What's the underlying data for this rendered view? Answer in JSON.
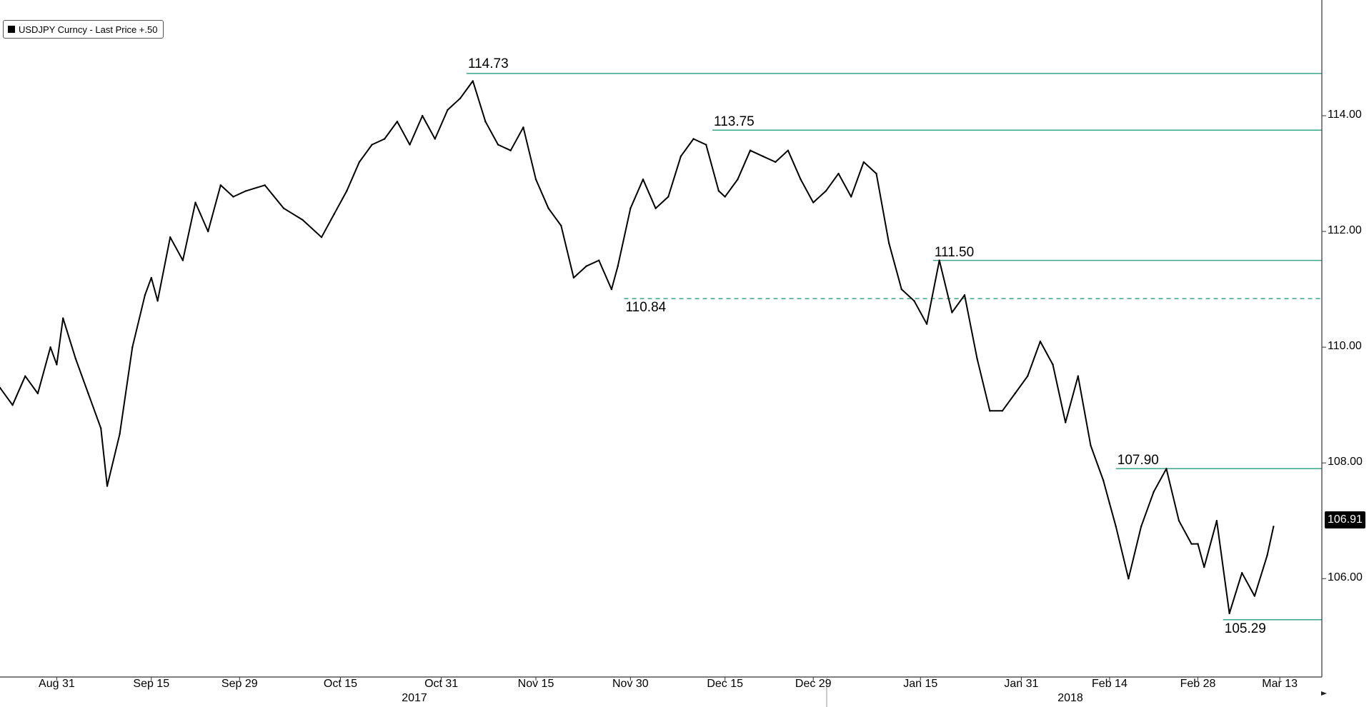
{
  "legend": {
    "label": "USDJPY Curncy - Last Price +.50"
  },
  "last_price_label": "106.91",
  "colors": {
    "series": "#000000",
    "level_line": "#3aa58a",
    "axis": "#333333"
  },
  "chart_data": {
    "type": "line",
    "title": "",
    "xlabel": "",
    "ylabel": "",
    "ylim": [
      104.3,
      116.0
    ],
    "legend_position": "top-left",
    "grid": false,
    "y_ticks": [
      "106.00",
      "108.00",
      "110.00",
      "112.00",
      "114.00"
    ],
    "x_ticks": [
      "Aug 31",
      "Sep 15",
      "Sep 29",
      "Oct 15",
      "Oct 31",
      "Nov 15",
      "Nov 30",
      "Dec 15",
      "Dec 29",
      "Jan 15",
      "Jan 31",
      "Feb 14",
      "Feb 28",
      "Mar 13"
    ],
    "years": [
      "2017",
      "2018"
    ],
    "series": [
      {
        "name": "USDJPY Curncy - Last Price",
        "x": [
          "2017-08-22",
          "2017-08-24",
          "2017-08-26",
          "2017-08-28",
          "2017-08-30",
          "2017-08-31",
          "2017-09-01",
          "2017-09-03",
          "2017-09-05",
          "2017-09-07",
          "2017-09-08",
          "2017-09-10",
          "2017-09-12",
          "2017-09-14",
          "2017-09-15",
          "2017-09-16",
          "2017-09-18",
          "2017-09-20",
          "2017-09-22",
          "2017-09-24",
          "2017-09-26",
          "2017-09-28",
          "2017-09-30",
          "2017-10-03",
          "2017-10-06",
          "2017-10-09",
          "2017-10-12",
          "2017-10-14",
          "2017-10-16",
          "2017-10-18",
          "2017-10-20",
          "2017-10-22",
          "2017-10-24",
          "2017-10-26",
          "2017-10-28",
          "2017-10-30",
          "2017-11-01",
          "2017-11-03",
          "2017-11-05",
          "2017-11-07",
          "2017-11-09",
          "2017-11-11",
          "2017-11-13",
          "2017-11-15",
          "2017-11-17",
          "2017-11-19",
          "2017-11-21",
          "2017-11-23",
          "2017-11-25",
          "2017-11-27",
          "2017-11-28",
          "2017-11-30",
          "2017-12-02",
          "2017-12-04",
          "2017-12-06",
          "2017-12-08",
          "2017-12-10",
          "2017-12-12",
          "2017-12-14",
          "2017-12-15",
          "2017-12-17",
          "2017-12-19",
          "2017-12-21",
          "2017-12-23",
          "2017-12-25",
          "2017-12-27",
          "2017-12-29",
          "2017-12-31",
          "2018-01-02",
          "2018-01-04",
          "2018-01-06",
          "2018-01-08",
          "2018-01-10",
          "2018-01-12",
          "2018-01-14",
          "2018-01-16",
          "2018-01-18",
          "2018-01-20",
          "2018-01-22",
          "2018-01-24",
          "2018-01-26",
          "2018-01-28",
          "2018-01-30",
          "2018-02-01",
          "2018-02-03",
          "2018-02-05",
          "2018-02-07",
          "2018-02-09",
          "2018-02-11",
          "2018-02-13",
          "2018-02-14",
          "2018-02-15",
          "2018-02-17",
          "2018-02-19",
          "2018-02-21",
          "2018-02-23",
          "2018-02-25",
          "2018-02-27",
          "2018-02-28",
          "2018-03-01",
          "2018-03-03",
          "2018-03-05",
          "2018-03-07",
          "2018-03-09",
          "2018-03-11",
          "2018-03-12"
        ],
        "y": [
          109.3,
          109.0,
          109.5,
          109.2,
          110.0,
          109.7,
          110.5,
          109.8,
          109.2,
          108.6,
          107.6,
          108.5,
          110.0,
          110.9,
          111.2,
          110.8,
          111.9,
          111.5,
          112.5,
          112.0,
          112.8,
          112.6,
          112.7,
          112.8,
          112.4,
          112.2,
          111.9,
          112.3,
          112.7,
          113.2,
          113.5,
          113.6,
          113.9,
          113.5,
          114.0,
          113.6,
          114.1,
          114.3,
          114.6,
          113.9,
          113.5,
          113.4,
          113.8,
          112.9,
          112.4,
          112.1,
          111.2,
          111.4,
          111.5,
          111.0,
          111.4,
          112.4,
          112.9,
          112.4,
          112.6,
          113.3,
          113.6,
          113.5,
          112.7,
          112.6,
          112.9,
          113.4,
          113.3,
          113.2,
          113.4,
          112.9,
          112.5,
          112.7,
          113.0,
          112.6,
          113.2,
          113.0,
          111.8,
          111.0,
          110.8,
          110.4,
          111.5,
          110.6,
          110.9,
          109.8,
          108.9,
          108.9,
          109.2,
          109.5,
          110.1,
          109.7,
          108.7,
          109.5,
          108.3,
          107.7,
          107.3,
          106.9,
          106.0,
          106.9,
          107.5,
          107.9,
          107.0,
          106.6,
          106.6,
          106.2,
          107.0,
          105.4,
          106.1,
          105.7,
          106.4,
          106.9
        ]
      }
    ],
    "levels": [
      {
        "value": 114.73,
        "label": "114.73",
        "style": "solid"
      },
      {
        "value": 113.75,
        "label": "113.75",
        "style": "solid"
      },
      {
        "value": 111.5,
        "label": "111.50",
        "style": "solid"
      },
      {
        "value": 110.84,
        "label": "110.84",
        "style": "dashed"
      },
      {
        "value": 107.9,
        "label": "107.90",
        "style": "solid"
      },
      {
        "value": 105.29,
        "label": "105.29",
        "style": "solid"
      }
    ]
  }
}
